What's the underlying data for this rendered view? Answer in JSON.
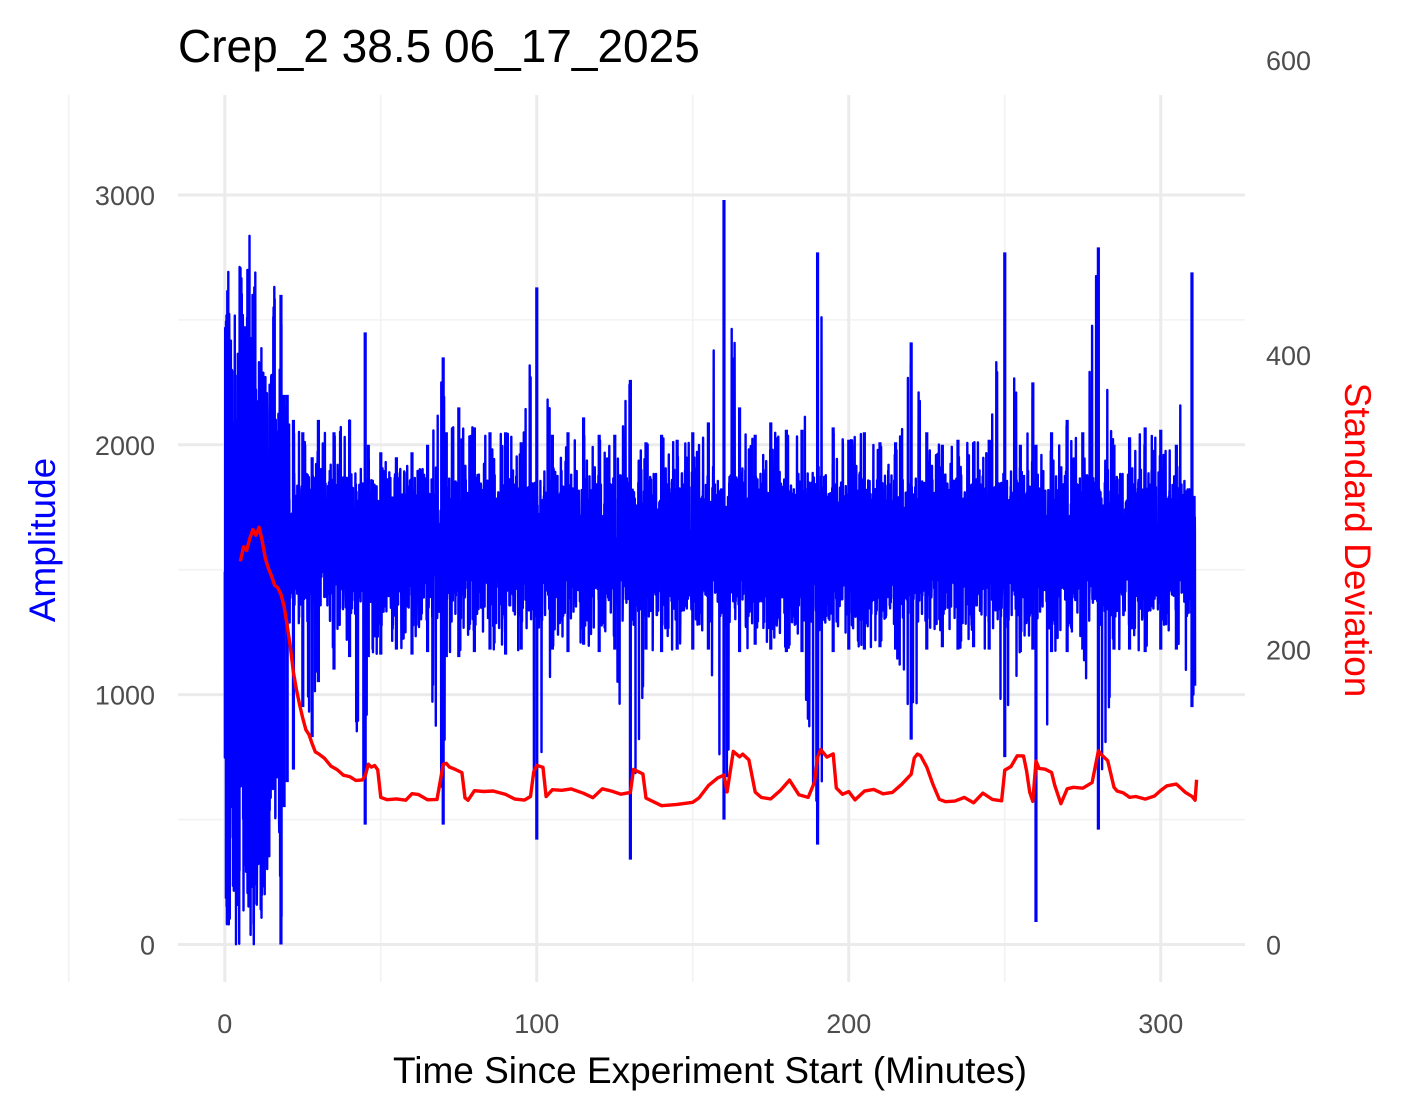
{
  "chart_data": {
    "type": "line",
    "title": "Crep_2 38.5 06_17_2025",
    "xlabel": "Time Since Experiment Start (Minutes)",
    "ylabel": "Amplitude",
    "ylabel_right": "Standard Deviation",
    "xlim": [
      -15,
      327
    ],
    "ylim": [
      -150,
      3400
    ],
    "ylim_right": [
      -25.4,
      576.3
    ],
    "x_ticks": [
      "0",
      "100",
      "200",
      "300"
    ],
    "y_ticks": [
      "0",
      "1000",
      "2000",
      "3000"
    ],
    "y_right_ticks": [
      "0",
      "200",
      "400",
      "600"
    ],
    "grid": true,
    "background": "#ffffff",
    "series": [
      {
        "name": "Amplitude",
        "axis": "left",
        "color": "#0000ff",
        "time_range": [
          0,
          311
        ],
        "base_band": [
          1250,
          1950
        ],
        "x": [
          0.5,
          1,
          2,
          3,
          4.5,
          5.5,
          7,
          8,
          9,
          10,
          11,
          12,
          13,
          14,
          15,
          16,
          17,
          18,
          19,
          20,
          22,
          25,
          28,
          30,
          35,
          40,
          45,
          46,
          50,
          55,
          60,
          65,
          70,
          71,
          75,
          80,
          85,
          90,
          95,
          100,
          105,
          110,
          115,
          120,
          125,
          130,
          135,
          140,
          145,
          150,
          155,
          160,
          165,
          170,
          175,
          180,
          185,
          190,
          195,
          200,
          205,
          210,
          215,
          220,
          225,
          230,
          235,
          240,
          245,
          250,
          255,
          259,
          260,
          265,
          270,
          275,
          280,
          285,
          290,
          295,
          300,
          305,
          310
        ],
        "high": [
          2500,
          3050,
          2750,
          2700,
          2700,
          2850,
          2600,
          3210,
          2550,
          2800,
          2350,
          2550,
          2300,
          2400,
          2300,
          2700,
          2100,
          2600,
          2200,
          2200,
          2100,
          2050,
          1950,
          2100,
          2050,
          2100,
          2450,
          2000,
          1970,
          1950,
          1970,
          2000,
          2350,
          2050,
          2150,
          2070,
          2050,
          2050,
          2010,
          2630,
          2040,
          2050,
          2110,
          2040,
          2040,
          2260,
          2010,
          2040,
          2020,
          2050,
          2090,
          2980,
          2150,
          2040,
          2090,
          2060,
          2060,
          2770,
          2070,
          2020,
          2050,
          2010,
          2010,
          2410,
          2050,
          2000,
          2020,
          2010,
          2020,
          2770,
          2000,
          2250,
          2000,
          2050,
          2100,
          2050,
          2790,
          2000,
          2030,
          2070,
          2060,
          2000,
          2690
        ],
        "low": [
          0,
          0,
          0,
          0,
          0,
          0,
          0,
          0,
          0,
          0,
          0,
          100,
          200,
          300,
          400,
          400,
          500,
          0,
          550,
          650,
          700,
          950,
          830,
          1050,
          1100,
          1150,
          480,
          1150,
          1160,
          1180,
          1160,
          1170,
          480,
          1150,
          1150,
          1170,
          1180,
          1160,
          1180,
          420,
          1180,
          1170,
          1200,
          1170,
          1180,
          340,
          1180,
          1170,
          1180,
          1180,
          1180,
          500,
          1170,
          1200,
          1180,
          1170,
          1170,
          400,
          1170,
          1180,
          1180,
          1190,
          1180,
          820,
          1180,
          1190,
          1180,
          1190,
          1180,
          750,
          1170,
          1180,
          90,
          1170,
          1170,
          1180,
          460,
          1180,
          1180,
          1170,
          1180,
          1180,
          950
        ]
      },
      {
        "name": "Standard Deviation",
        "axis": "right",
        "color": "#ff0000",
        "x": [
          5,
          6,
          7,
          8,
          9,
          10,
          11,
          12,
          13,
          14,
          15,
          16,
          17,
          18,
          19,
          20,
          21,
          22,
          23,
          24,
          25,
          26,
          27,
          28,
          29,
          30,
          32,
          34,
          36,
          38,
          40,
          42,
          44,
          45,
          46,
          47,
          48,
          49,
          50,
          52,
          55,
          58,
          60,
          62,
          65,
          68,
          70,
          71,
          72,
          74,
          76,
          77,
          78,
          80,
          83,
          86,
          90,
          93,
          96,
          98,
          99,
          100,
          102,
          103,
          105,
          108,
          111,
          115,
          118,
          121,
          124,
          127,
          130,
          131,
          134,
          135,
          140,
          145,
          150,
          152,
          155,
          158,
          160,
          161,
          163,
          165,
          166,
          168,
          170,
          172,
          175,
          178,
          181,
          184,
          187,
          189,
          190,
          191,
          193,
          195,
          196,
          198,
          200,
          202,
          205,
          208,
          211,
          214,
          217,
          220,
          221,
          222,
          223,
          225,
          227,
          229,
          231,
          234,
          237,
          240,
          243,
          246,
          249,
          250,
          252,
          254,
          256,
          257,
          258,
          259,
          260,
          261,
          263,
          265,
          266,
          268,
          270,
          272,
          275,
          278,
          280,
          281,
          283,
          285,
          286,
          288,
          290,
          292,
          295,
          298,
          300,
          302,
          305,
          308,
          310,
          311,
          311.5
        ],
        "values": [
          260,
          270,
          268,
          275,
          282,
          278,
          283,
          274,
          262,
          255,
          250,
          243,
          241,
          236,
          228,
          215,
          202,
          185,
          171,
          162,
          153,
          147,
          141,
          136,
          132,
          130,
          126,
          122,
          118,
          116,
          113,
          111,
          111,
          115,
          121,
          119,
          121,
          119,
          100,
          98,
          98,
          97,
          102,
          101,
          98,
          97,
          122,
          124,
          121,
          118,
          116,
          98,
          99,
          104,
          104,
          105,
          103,
          98,
          97,
          99,
          117,
          123,
          119,
          99,
          104,
          104,
          106,
          104,
          101,
          107,
          103,
          103,
          103,
          119,
          115,
          98,
          95,
          95,
          97,
          98,
          108,
          114,
          116,
          103,
          130,
          126,
          129,
          125,
          104,
          100,
          98,
          104,
          111,
          103,
          100,
          110,
          128,
          131,
          128,
          130,
          106,
          103,
          103,
          99,
          104,
          104,
          102,
          104,
          110,
          115,
          126,
          130,
          129,
          121,
          108,
          100,
          97,
          96,
          99,
          97,
          102,
          98,
          98,
          119,
          121,
          127,
          128,
          117,
          103,
          97,
          123,
          121,
          118,
          116,
          108,
          97,
          106,
          108,
          105,
          109,
          132,
          130,
          124,
          107,
          104,
          102,
          99,
          100,
          98,
          101,
          106,
          107,
          110,
          104,
          100,
          98,
          111
        ]
      }
    ]
  }
}
